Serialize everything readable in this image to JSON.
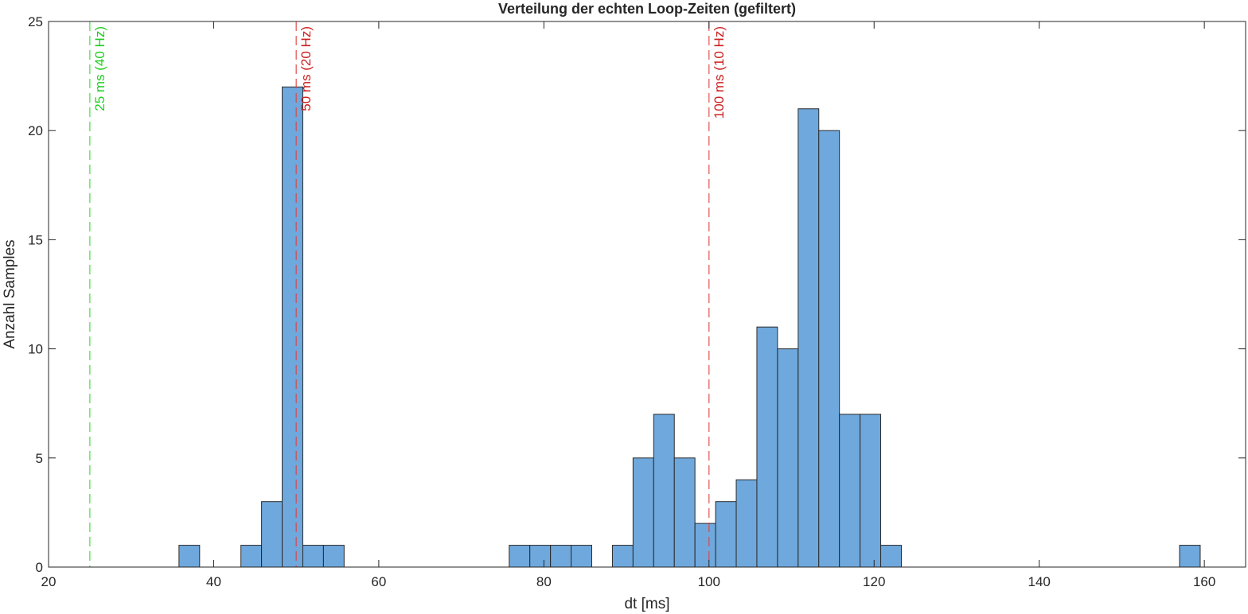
{
  "chart_data": {
    "type": "bar",
    "subtype": "histogram",
    "title": "Verteilung der echten Loop-Zeiten (gefiltert)",
    "xlabel": "dt [ms]",
    "ylabel": "Anzahl Samples",
    "xlim": [
      20,
      165
    ],
    "ylim": [
      0,
      25
    ],
    "xticks": [
      20,
      40,
      60,
      80,
      100,
      120,
      140,
      160
    ],
    "yticks": [
      0,
      5,
      10,
      15,
      20,
      25
    ],
    "bin_width": 2.5,
    "bins": [
      {
        "start": 35.8,
        "count": 1
      },
      {
        "start": 43.3,
        "count": 1
      },
      {
        "start": 45.8,
        "count": 3
      },
      {
        "start": 48.3,
        "count": 22
      },
      {
        "start": 50.8,
        "count": 1
      },
      {
        "start": 53.3,
        "count": 1
      },
      {
        "start": 75.8,
        "count": 1
      },
      {
        "start": 78.3,
        "count": 1
      },
      {
        "start": 80.8,
        "count": 1
      },
      {
        "start": 83.3,
        "count": 1
      },
      {
        "start": 88.3,
        "count": 1
      },
      {
        "start": 90.8,
        "count": 5
      },
      {
        "start": 93.3,
        "count": 7
      },
      {
        "start": 95.8,
        "count": 5
      },
      {
        "start": 98.3,
        "count": 2
      },
      {
        "start": 100.8,
        "count": 3
      },
      {
        "start": 103.3,
        "count": 4
      },
      {
        "start": 105.8,
        "count": 11
      },
      {
        "start": 108.3,
        "count": 10
      },
      {
        "start": 110.8,
        "count": 21
      },
      {
        "start": 113.3,
        "count": 20
      },
      {
        "start": 115.8,
        "count": 7
      },
      {
        "start": 118.3,
        "count": 7
      },
      {
        "start": 120.8,
        "count": 1
      },
      {
        "start": 157.0,
        "count": 1
      }
    ],
    "reference_lines": [
      {
        "x": 25,
        "label": "25 ms (40 Hz)",
        "color": "#33dd33"
      },
      {
        "x": 50,
        "label": "50 ms (20 Hz)",
        "color": "#e04040"
      },
      {
        "x": 100,
        "label": "100 ms (10 Hz)",
        "color": "#e04040"
      }
    ],
    "bar_color": "#6fa8dc",
    "bar_edge_color": "#2a2a2a",
    "label_colors": {
      "green": "#22cc22",
      "red": "#cc2020"
    },
    "grid": false
  }
}
